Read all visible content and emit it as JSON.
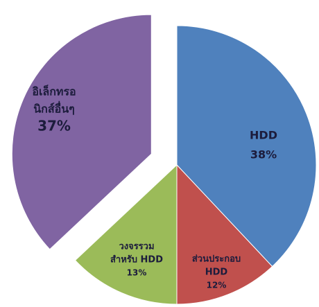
{
  "chart_data": {
    "type": "pie",
    "categories": [
      [
        "HDD"
      ],
      [
        "ส่วนประกอบ",
        "HDD"
      ],
      [
        "วงจรรวม",
        "สำหรับ HDD"
      ],
      [
        "อิเล็กทรอ",
        "นิกส์อื่นๆ"
      ]
    ],
    "values": [
      38,
      12,
      13,
      37
    ],
    "value_labels": [
      "38%",
      "12%",
      "13%",
      "37%"
    ],
    "colors": [
      "#4f81bd",
      "#c0504d",
      "#9bbb59",
      "#8064a2"
    ],
    "exploded": [
      false,
      false,
      false,
      true
    ]
  }
}
